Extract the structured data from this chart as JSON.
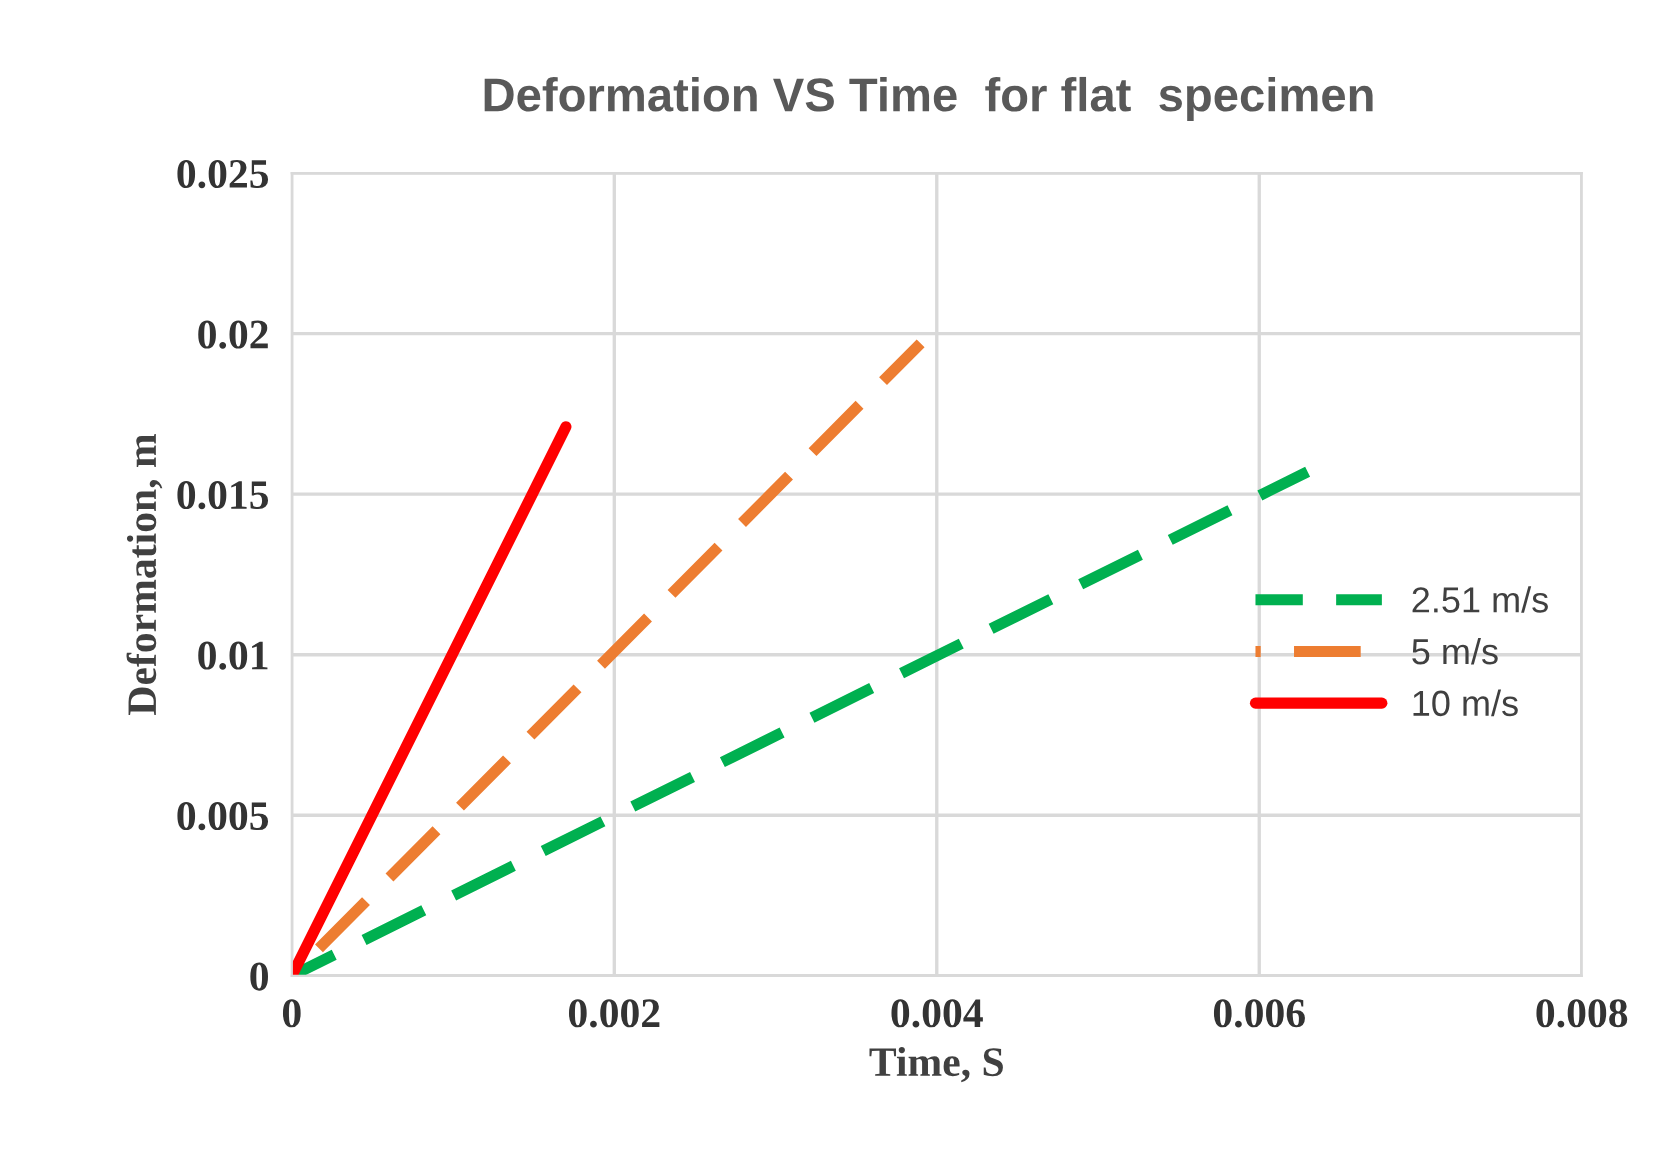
{
  "chart_data": {
    "type": "line",
    "title": "Deformation VS Time  for flat  specimen",
    "xlabel": "Time, S",
    "ylabel": "Deformation, m",
    "xlim": [
      0,
      0.008
    ],
    "xticks": [
      0,
      0.002,
      0.004,
      0.006,
      0.008
    ],
    "ylim": [
      0,
      0.025
    ],
    "yticks": [
      0,
      0.005,
      0.01,
      0.015,
      0.02,
      0.025
    ],
    "grid": true,
    "legend": "right",
    "marker": "none",
    "series": [
      {
        "name": "2.51 m/s",
        "color": "#00b050",
        "line_style": "dashed",
        "x": [
          0,
          0.0063
        ],
        "values": [
          0,
          0.0157
        ]
      },
      {
        "name": "5 m/s",
        "color": "#ed7d31",
        "line_style": "dashed",
        "x": [
          0,
          0.0039
        ],
        "values": [
          0,
          0.0197
        ]
      },
      {
        "name": "10 m/s",
        "color": "#ff0000",
        "line_style": "solid",
        "x": [
          0,
          0.0017
        ],
        "values": [
          0,
          0.0171
        ]
      }
    ]
  }
}
